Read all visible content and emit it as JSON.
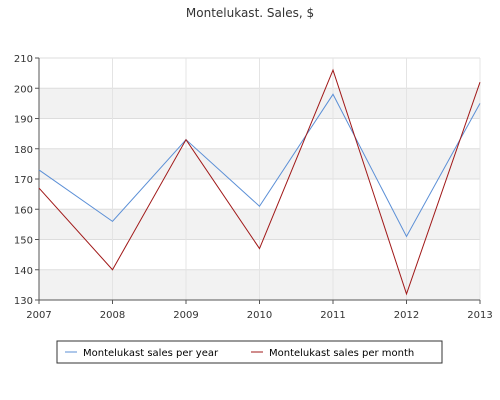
{
  "chart_data": {
    "type": "line",
    "title": "Montelukast. Sales, $",
    "xlabel": "",
    "ylabel": "",
    "x": [
      2007,
      2008,
      2009,
      2010,
      2011,
      2012,
      2013
    ],
    "ylim": [
      130,
      210
    ],
    "yticks": [
      130,
      140,
      150,
      160,
      170,
      180,
      190,
      200,
      210
    ],
    "grid": true,
    "legend_position": "bottom",
    "series": [
      {
        "name": "Montelukast sales per year",
        "color": "#5b8fd6",
        "values": [
          173,
          156,
          183,
          161,
          198,
          151,
          195
        ]
      },
      {
        "name": "Montelukast sales per month",
        "color": "#a01818",
        "values": [
          167,
          140,
          183,
          147,
          206,
          132,
          202
        ]
      }
    ]
  }
}
